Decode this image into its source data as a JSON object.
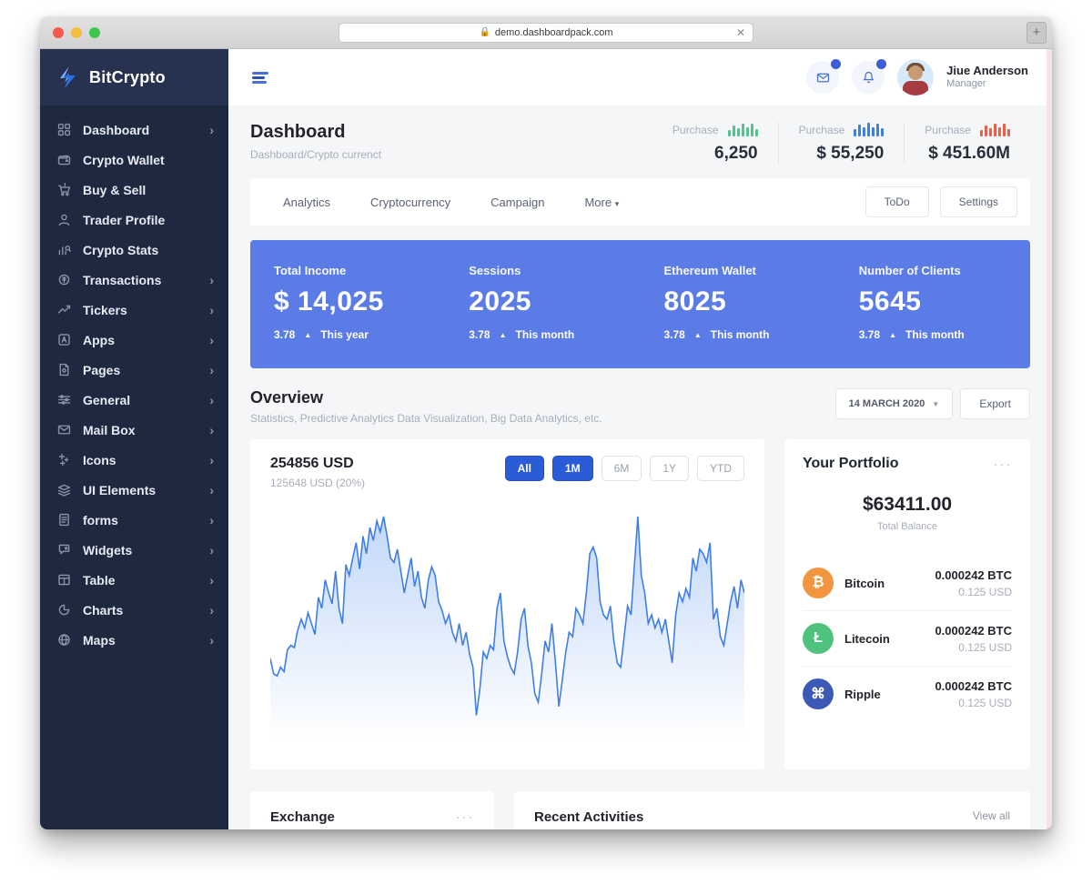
{
  "browser": {
    "url": "demo.dashboardpack.com",
    "close_tab_label": "✕",
    "new_tab_label": "+"
  },
  "sidebar": {
    "brand": "BitCrypto",
    "items": [
      {
        "label": "Dashboard",
        "chevron": true
      },
      {
        "label": "Crypto Wallet",
        "chevron": false
      },
      {
        "label": "Buy & Sell",
        "chevron": false
      },
      {
        "label": "Trader Profile",
        "chevron": false
      },
      {
        "label": "Crypto Stats",
        "chevron": false
      },
      {
        "label": "Transactions",
        "chevron": true
      },
      {
        "label": "Tickers",
        "chevron": true
      },
      {
        "label": "Apps",
        "chevron": true
      },
      {
        "label": "Pages",
        "chevron": true
      },
      {
        "label": "General",
        "chevron": true
      },
      {
        "label": "Mail Box",
        "chevron": true
      },
      {
        "label": "Icons",
        "chevron": true
      },
      {
        "label": "UI Elements",
        "chevron": true
      },
      {
        "label": "forms",
        "chevron": true
      },
      {
        "label": "Widgets",
        "chevron": true
      },
      {
        "label": "Table",
        "chevron": true
      },
      {
        "label": "Charts",
        "chevron": true
      },
      {
        "label": "Maps",
        "chevron": true
      }
    ]
  },
  "topbar": {
    "user_name": "Jiue Anderson",
    "user_role": "Manager"
  },
  "pagehead": {
    "title": "Dashboard",
    "breadcrumb": "Dashboard/Crypto currenct",
    "purchases": [
      {
        "label": "Purchase",
        "value": "6,250"
      },
      {
        "label": "Purchase",
        "value": "$ 55,250"
      },
      {
        "label": "Purchase",
        "value": "$ 451.60M"
      }
    ]
  },
  "tabs": {
    "items": [
      "Analytics",
      "Cryptocurrency",
      "Campaign",
      "More"
    ],
    "more_caret": "▾",
    "todo_label": "ToDo",
    "settings_label": "Settings"
  },
  "band": {
    "up_arrow": "▲",
    "cards": [
      {
        "label": "Total Income",
        "value": "$ 14,025",
        "delta": "3.78",
        "period": "This year"
      },
      {
        "label": "Sessions",
        "value": "2025",
        "delta": "3.78",
        "period": "This month"
      },
      {
        "label": "Ethereum Wallet",
        "value": "8025",
        "delta": "3.78",
        "period": "This month"
      },
      {
        "label": "Number of Clients",
        "value": "5645",
        "delta": "3.78",
        "period": "This month"
      }
    ]
  },
  "overview": {
    "title": "Overview",
    "subtitle": "Statistics, Predictive Analytics Data Visualization, Big Data Analytics, etc.",
    "date_select": "14 MARCH 2020",
    "date_caret": "▼",
    "export_label": "Export",
    "price": "254856 USD",
    "price_sub": "125648 USD (20%)",
    "range_pills": [
      {
        "label": "All",
        "active": true
      },
      {
        "label": "1M",
        "active": true
      },
      {
        "label": "6M",
        "active": false
      },
      {
        "label": "1Y",
        "active": false
      },
      {
        "label": "YTD",
        "active": false
      }
    ]
  },
  "portfolio": {
    "title": "Your Portfolio",
    "menu": "···",
    "balance": "$63411.00",
    "balance_label": "Total Balance",
    "coins": [
      {
        "name": "Bitcoin",
        "symbol": "₿",
        "color": "#f2953f",
        "amount": "0.000242 BTC",
        "usd": "0.125 USD"
      },
      {
        "name": "Litecoin",
        "symbol": "Ł",
        "color": "#4fc37e",
        "amount": "0.000242 BTC",
        "usd": "0.125 USD"
      },
      {
        "name": "Ripple",
        "symbol": "⌘",
        "color": "#3c59b8",
        "amount": "0.000242 BTC",
        "usd": "0.125 USD"
      }
    ]
  },
  "bottom": {
    "exchange_title": "Exchange",
    "exchange_menu": "···",
    "activities_title": "Recent Activities",
    "view_all": "View all"
  },
  "colors": {
    "accent_blue": "#2a5cd8",
    "band_blue": "#5b7ce6",
    "sidebar_navy": "#1e2940",
    "chart_line": "#3e7de8"
  },
  "chart_data": [
    {
      "type": "area",
      "name": "overview-price-chart",
      "title": "254856 USD",
      "subtitle": "125648 USD (20%)",
      "legend": "none",
      "grid": false,
      "axes_labeled": false,
      "ylim": [
        0,
        100
      ],
      "line_color": "#3e7de8",
      "values": [
        32,
        25,
        24,
        28,
        26,
        36,
        38,
        37,
        45,
        50,
        46,
        53,
        48,
        43,
        60,
        55,
        68,
        62,
        57,
        72,
        55,
        48,
        75,
        70,
        78,
        85,
        73,
        88,
        80,
        92,
        86,
        95,
        90,
        97,
        88,
        78,
        76,
        82,
        72,
        62,
        70,
        78,
        65,
        72,
        60,
        55,
        68,
        74,
        70,
        58,
        54,
        48,
        52,
        44,
        40,
        48,
        38,
        44,
        34,
        28,
        6,
        18,
        35,
        32,
        38,
        36,
        55,
        62,
        40,
        33,
        28,
        25,
        35,
        50,
        55,
        38,
        30,
        16,
        12,
        25,
        40,
        35,
        48,
        30,
        10,
        22,
        35,
        44,
        42,
        55,
        52,
        48,
        62,
        80,
        83,
        78,
        58,
        52,
        50,
        56,
        40,
        30,
        28,
        42,
        56,
        52,
        75,
        97,
        70,
        62,
        48,
        52,
        46,
        50,
        44,
        50,
        40,
        30,
        52,
        62,
        58,
        64,
        60,
        78,
        72,
        82,
        80,
        76,
        85,
        50,
        55,
        42,
        38,
        48,
        58,
        65,
        55,
        68,
        62
      ]
    },
    {
      "type": "bar",
      "name": "purchase-spark-green",
      "color": "#57c28d",
      "values": [
        45,
        75,
        55,
        90,
        60,
        85,
        50
      ]
    },
    {
      "type": "bar",
      "name": "purchase-spark-blue",
      "color": "#3e7fe0",
      "values": [
        50,
        80,
        60,
        95,
        65,
        85,
        55
      ]
    },
    {
      "type": "bar",
      "name": "purchase-spark-red",
      "color": "#e8604c",
      "values": [
        45,
        75,
        55,
        90,
        60,
        85,
        50
      ]
    }
  ]
}
